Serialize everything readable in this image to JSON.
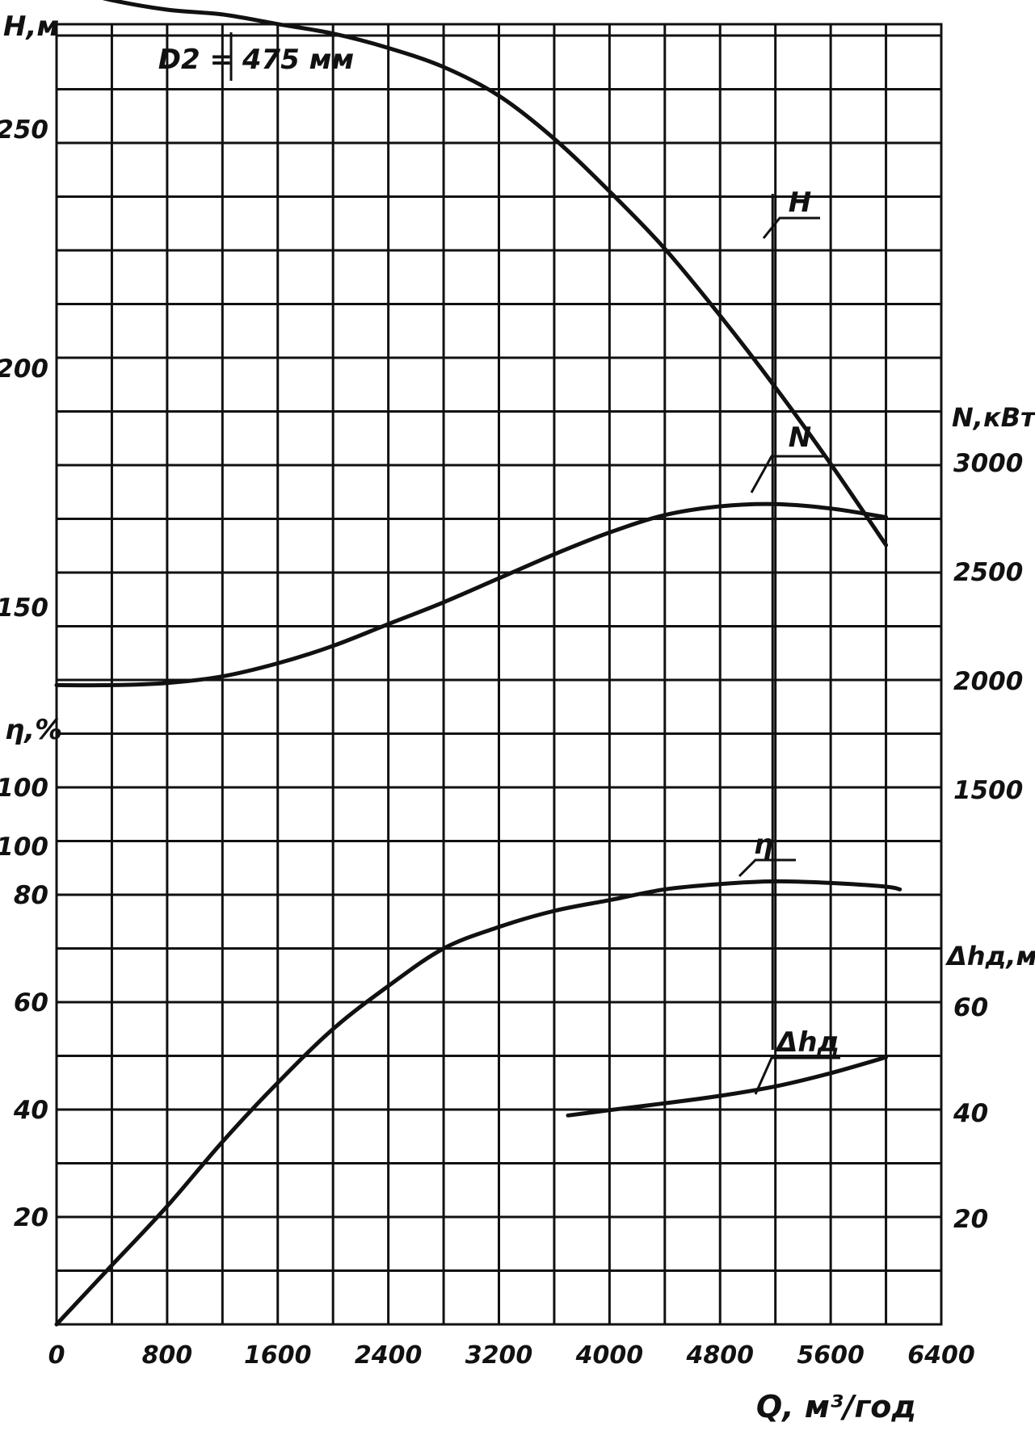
{
  "chart_data": {
    "type": "line",
    "x": {
      "label": "Q, м³/год",
      "min": 0,
      "max": 6400,
      "ticks": [
        0,
        800,
        1600,
        2400,
        3200,
        4000,
        4800,
        5600,
        6400
      ],
      "tick_labels": [
        "0",
        "800",
        "1600",
        "2400",
        "3200",
        "4000",
        "4800",
        "5600",
        "6400"
      ]
    },
    "axes": {
      "H": {
        "label": "H,м",
        "side": "left",
        "range": [
          0,
          290
        ],
        "ticks": [
          100,
          150,
          200,
          250
        ],
        "tick_labels": [
          "100",
          "150",
          "200",
          "250"
        ]
      },
      "eta": {
        "label": "η,%",
        "side": "left",
        "range": [
          0,
          100
        ],
        "ticks": [
          20,
          40,
          60,
          80,
          100
        ],
        "tick_labels": [
          "20",
          "40",
          "60",
          "80",
          "100"
        ]
      },
      "N": {
        "label": "N,кВт",
        "side": "right",
        "range": [
          0,
          3000
        ],
        "ticks": [
          1500,
          2000,
          2500,
          3000
        ],
        "tick_labels": [
          "1500",
          "2000",
          "2500",
          "3000"
        ]
      },
      "dh": {
        "label": "Δhд,м",
        "side": "right",
        "range": [
          0,
          100
        ],
        "ticks": [
          20,
          40,
          60
        ],
        "tick_labels": [
          "20",
          "40",
          "60"
        ]
      }
    },
    "annotation": "D2 = 475 мм",
    "grid": true,
    "series": [
      {
        "name": "H",
        "axis": "H",
        "x": [
          0,
          400,
          800,
          1200,
          1600,
          2000,
          2400,
          2800,
          3200,
          3600,
          4000,
          4400,
          4800,
          5200,
          5600,
          6000
        ],
        "values": [
          280,
          277,
          275,
          274,
          272,
          270,
          267,
          263,
          257,
          248,
          237,
          225,
          211,
          196,
          180,
          163
        ]
      },
      {
        "name": "N",
        "axis": "N",
        "x": [
          0,
          400,
          800,
          1200,
          1600,
          2000,
          2400,
          2800,
          3200,
          3600,
          4000,
          4400,
          4800,
          5200,
          5600,
          6000
        ],
        "values": [
          1980,
          1980,
          1990,
          2020,
          2080,
          2160,
          2260,
          2360,
          2470,
          2580,
          2680,
          2760,
          2800,
          2810,
          2790,
          2750
        ]
      },
      {
        "name": "η",
        "axis": "eta",
        "x": [
          0,
          400,
          800,
          1200,
          1600,
          2000,
          2400,
          2800,
          3200,
          3600,
          4000,
          4400,
          4800,
          5200,
          5600,
          6000,
          6100
        ],
        "values": [
          0,
          11,
          22,
          34,
          45,
          55,
          63,
          70,
          74,
          77,
          79,
          81,
          82,
          82.5,
          82.2,
          81.5,
          81
        ]
      },
      {
        "name": "Δhд",
        "axis": "dh",
        "x": [
          3700,
          4000,
          4400,
          4800,
          5200,
          5600,
          6000
        ],
        "values": [
          39.5,
          40.5,
          41.8,
          43.2,
          45.0,
          47.5,
          50.5
        ]
      }
    ]
  }
}
